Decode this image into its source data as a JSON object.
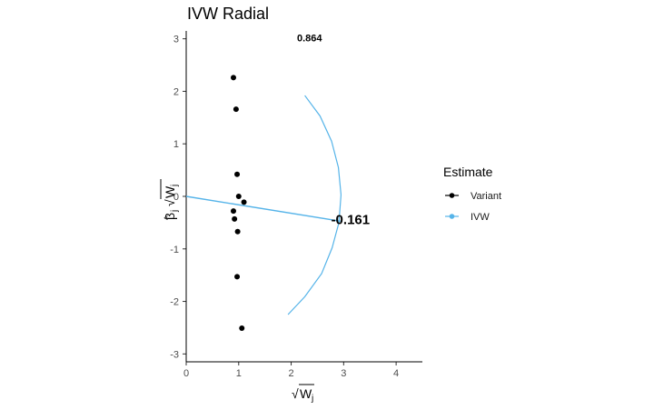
{
  "chart_data": {
    "type": "scatter",
    "title": "IVW Radial",
    "xlim": [
      0,
      4.5
    ],
    "ylim": [
      -3.15,
      3.15
    ],
    "x_ticks": [
      "0",
      "1",
      "2",
      "3",
      "4"
    ],
    "y_ticks": [
      "-3",
      "-2",
      "-1",
      "0",
      "1",
      "2",
      "3"
    ],
    "xlabel_parts": {
      "radical": "√",
      "base": "W",
      "sub": "j"
    },
    "ylabel_parts": {
      "hat": "^",
      "beta": "β",
      "sub": "j",
      "radical": "√",
      "base": "W",
      "sub2": "j"
    },
    "legend": {
      "title": "Estimate",
      "position": "right",
      "items": [
        {
          "label": "Variant",
          "color": "#000000"
        },
        {
          "label": "IVW",
          "color": "#56B4E9"
        }
      ]
    },
    "series": [
      {
        "name": "Variant",
        "color": "#000000",
        "points": [
          {
            "x": 0.9,
            "y": 2.26
          },
          {
            "x": 0.95,
            "y": 1.66
          },
          {
            "x": 0.97,
            "y": 0.42
          },
          {
            "x": 1.0,
            "y": 0.0
          },
          {
            "x": 1.1,
            "y": -0.11
          },
          {
            "x": 0.9,
            "y": -0.28
          },
          {
            "x": 0.92,
            "y": -0.43
          },
          {
            "x": 0.98,
            "y": -0.67
          },
          {
            "x": 0.97,
            "y": -1.53
          },
          {
            "x": 1.06,
            "y": -2.51
          }
        ]
      },
      {
        "name": "IVW",
        "color": "#56B4E9",
        "estimate_line": {
          "slope": -0.161,
          "x_end": 2.94
        },
        "arc": [
          {
            "x": 2.26,
            "y": 1.92
          },
          {
            "x": 2.55,
            "y": 1.53
          },
          {
            "x": 2.77,
            "y": 1.05
          },
          {
            "x": 2.9,
            "y": 0.55
          },
          {
            "x": 2.95,
            "y": 0.03
          },
          {
            "x": 2.91,
            "y": -0.5
          },
          {
            "x": 2.78,
            "y": -0.98
          },
          {
            "x": 2.58,
            "y": -1.47
          },
          {
            "x": 2.26,
            "y": -1.91
          },
          {
            "x": 1.94,
            "y": -2.25
          }
        ]
      }
    ],
    "annotations": [
      {
        "text": "0.864",
        "x": 2.35,
        "y": 2.95,
        "size": "small"
      },
      {
        "text": "-0.161",
        "x": 3.13,
        "y": -0.53,
        "size": "big"
      }
    ]
  }
}
